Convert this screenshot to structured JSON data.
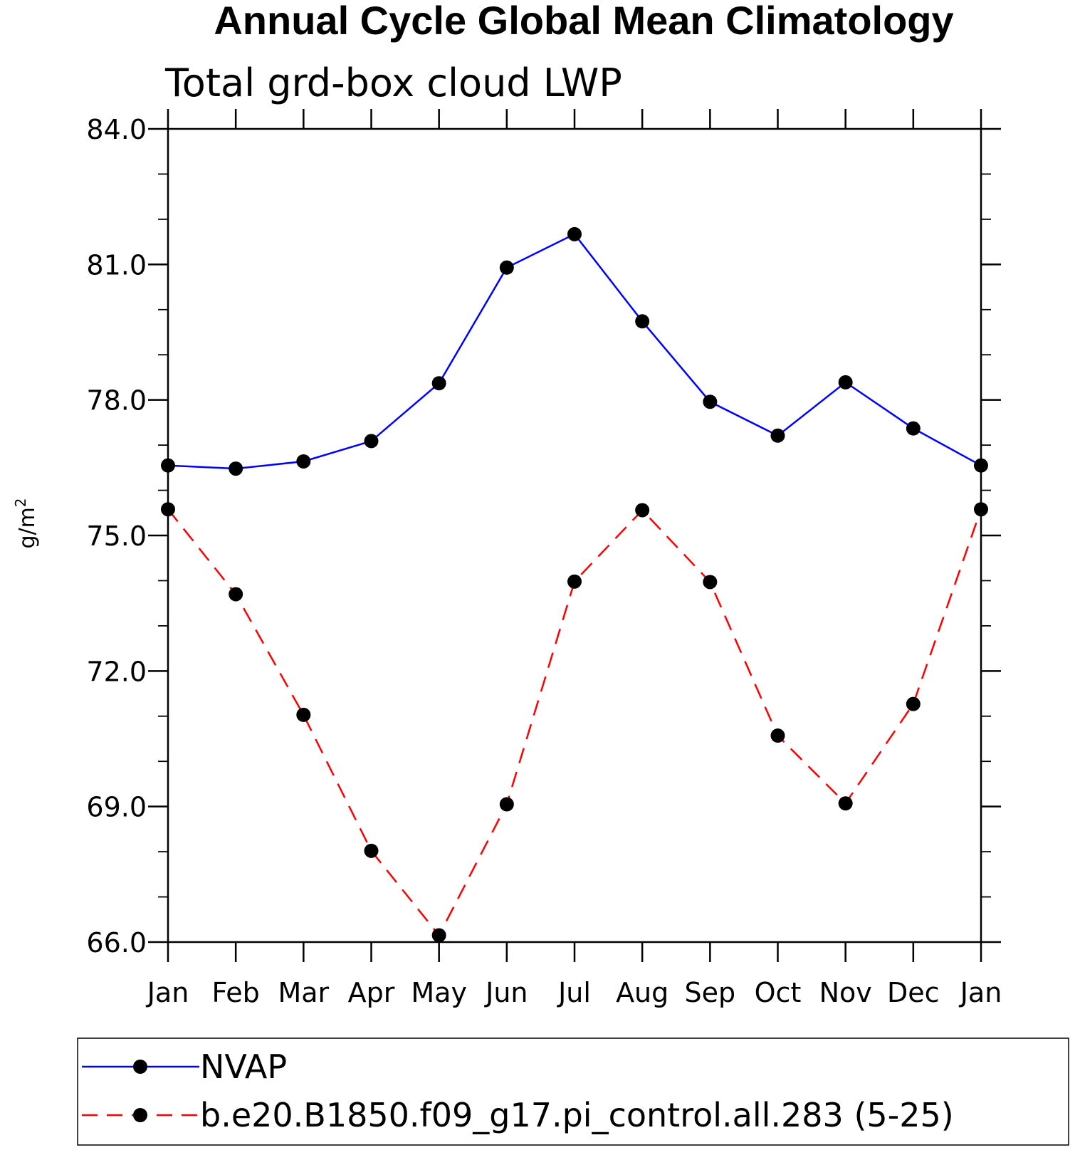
{
  "chart_data": {
    "type": "line",
    "title": "Annual Cycle Global Mean Climatology",
    "subtitle": "Total grd-box cloud LWP",
    "ylabel": "g/m",
    "ylabel_sup": "2",
    "xlabel": "",
    "categories": [
      "Jan",
      "Feb",
      "Mar",
      "Apr",
      "May",
      "Jun",
      "Jul",
      "Aug",
      "Sep",
      "Oct",
      "Nov",
      "Dec",
      "Jan"
    ],
    "ylim": [
      66.0,
      84.0
    ],
    "yticks": [
      66.0,
      69.0,
      72.0,
      75.0,
      78.0,
      81.0,
      84.0
    ],
    "ytick_labels": [
      "66.0",
      "69.0",
      "72.0",
      "75.0",
      "78.0",
      "81.0",
      "84.0"
    ],
    "legend_position": "bottom",
    "grid": false,
    "series": [
      {
        "name": "NVAP",
        "color": "#0000ff",
        "style": "solid",
        "marker": "filled-circle",
        "values": [
          76.55,
          76.48,
          76.64,
          77.09,
          78.37,
          80.93,
          81.67,
          79.74,
          77.96,
          77.21,
          78.39,
          77.37,
          76.55
        ]
      },
      {
        "name": "b.e20.B1850.f09_g17.pi_control.all.283 (5-25)",
        "color": "#ff0000",
        "style": "dashed",
        "marker": "filled-circle",
        "values": [
          75.58,
          73.7,
          71.03,
          68.02,
          66.15,
          69.05,
          73.98,
          75.56,
          73.97,
          70.57,
          69.07,
          71.27,
          75.58
        ]
      }
    ]
  }
}
